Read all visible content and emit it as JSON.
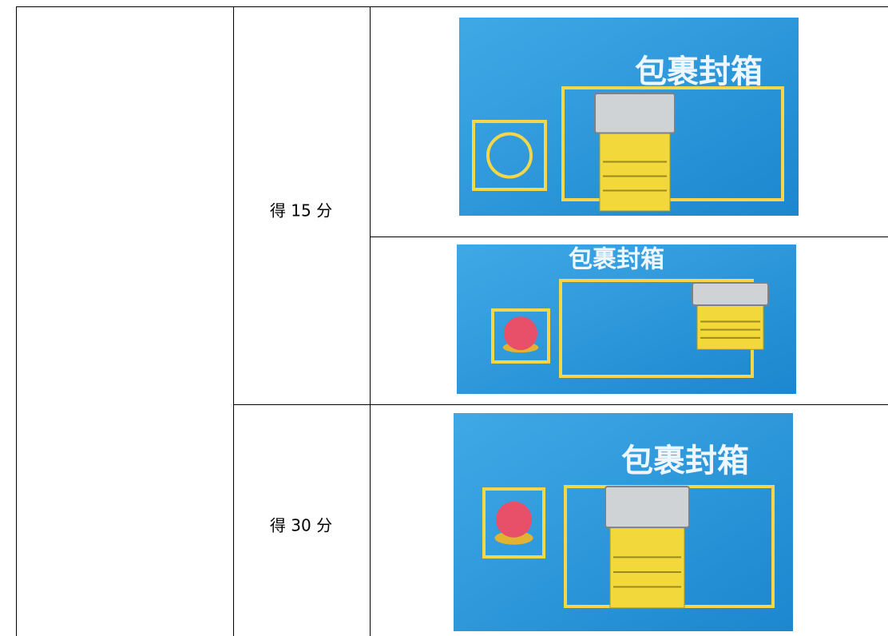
{
  "table": {
    "rows": [
      {
        "label": "得 15 分",
        "photos": [
          {
            "caption": "包裹封箱"
          },
          {
            "caption": "包裹封箱"
          }
        ]
      },
      {
        "label": "得 30 分",
        "photos": [
          {
            "caption": "包裹封箱"
          }
        ]
      }
    ]
  }
}
